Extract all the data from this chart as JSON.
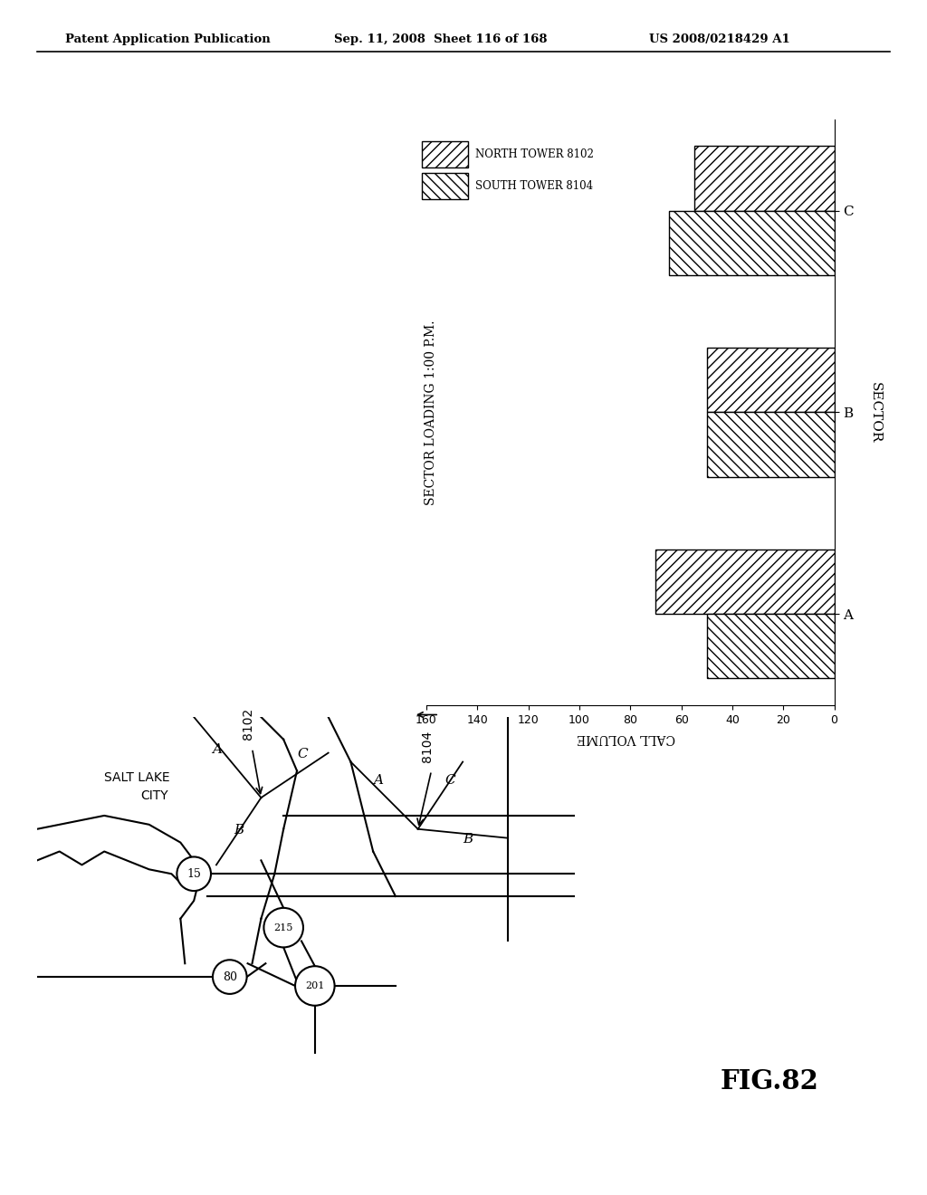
{
  "header_left": "Patent Application Publication",
  "header_mid": "Sep. 11, 2008  Sheet 116 of 168",
  "header_right": "US 2008/0218429 A1",
  "fig_label": "FIG.82",
  "chart_title": "SECTOR LOADING 1:00 P.M.",
  "chart_xlabel": "CALL VOLUME",
  "chart_ylabel": "SECTOR",
  "sectors": [
    "A",
    "B",
    "C"
  ],
  "north_tower_label": "NORTH TOWER 8102",
  "south_tower_label": "SOUTH TOWER 8104",
  "north_values": [
    70,
    50,
    55
  ],
  "south_values": [
    50,
    50,
    65
  ],
  "xlim_max": 160,
  "xticks": [
    0,
    20,
    40,
    60,
    80,
    100,
    120,
    140,
    160
  ],
  "background": "#ffffff",
  "map_city_line1": "SALT LAKE",
  "map_city_line2": "CITY",
  "tower1_ref": "8102",
  "tower2_ref": "8104",
  "hw15": "15",
  "hw215": "215",
  "hw80": "80",
  "hw201": "201"
}
